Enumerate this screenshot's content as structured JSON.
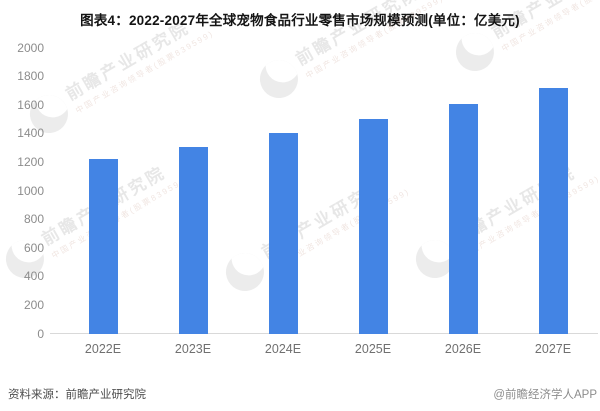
{
  "header": {
    "title": "图表4：2022-2027年全球宠物食品行业零售市场规模预测(单位：亿美元)"
  },
  "chart_data": {
    "type": "bar",
    "title": "图表4：2022-2027年全球宠物食品行业零售市场规模预测(单位：亿美元)",
    "unit_label": "亿美元",
    "categories": [
      "2022E",
      "2023E",
      "2024E",
      "2025E",
      "2026E",
      "2027E"
    ],
    "values": [
      1225,
      1310,
      1405,
      1505,
      1610,
      1720
    ],
    "xlabel": "",
    "ylabel": "",
    "ylim": [
      0,
      2000
    ],
    "yticks": [
      0,
      200,
      400,
      600,
      800,
      1000,
      1200,
      1400,
      1600,
      1800,
      2000
    ],
    "bar_color": "#4384E4",
    "axis_line_color": "#d9d9d9",
    "grid": false,
    "legend": false
  },
  "footer": {
    "source": "资料来源：前瞻产业研究院",
    "credit": "@前瞻经济学人APP"
  },
  "watermark": {
    "brand": "前瞻产业研究院",
    "tagline": "中国产业咨询领导者(股票839599)"
  }
}
